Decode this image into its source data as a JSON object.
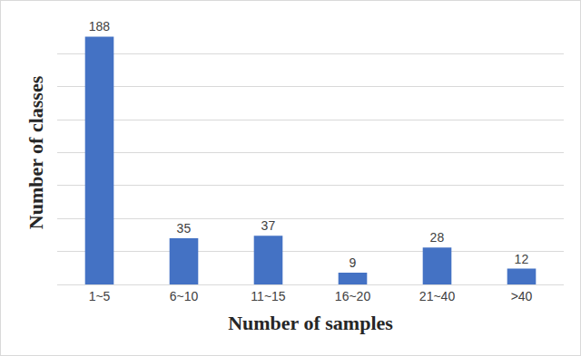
{
  "chart_data": {
    "type": "bar",
    "x_label": "Number of samples",
    "y_label": "Number of classes",
    "categories": [
      "1~5",
      "6~10",
      "11~15",
      "16~20",
      "21~40",
      ">40"
    ],
    "values": [
      188,
      35,
      37,
      9,
      28,
      12
    ],
    "color": "#4472c4",
    "ylim": [
      0,
      200
    ],
    "yticks": [
      0,
      25,
      50,
      75,
      100,
      125,
      150,
      175,
      200
    ],
    "grid": true,
    "data_labels": true,
    "tick_labels": "x"
  }
}
